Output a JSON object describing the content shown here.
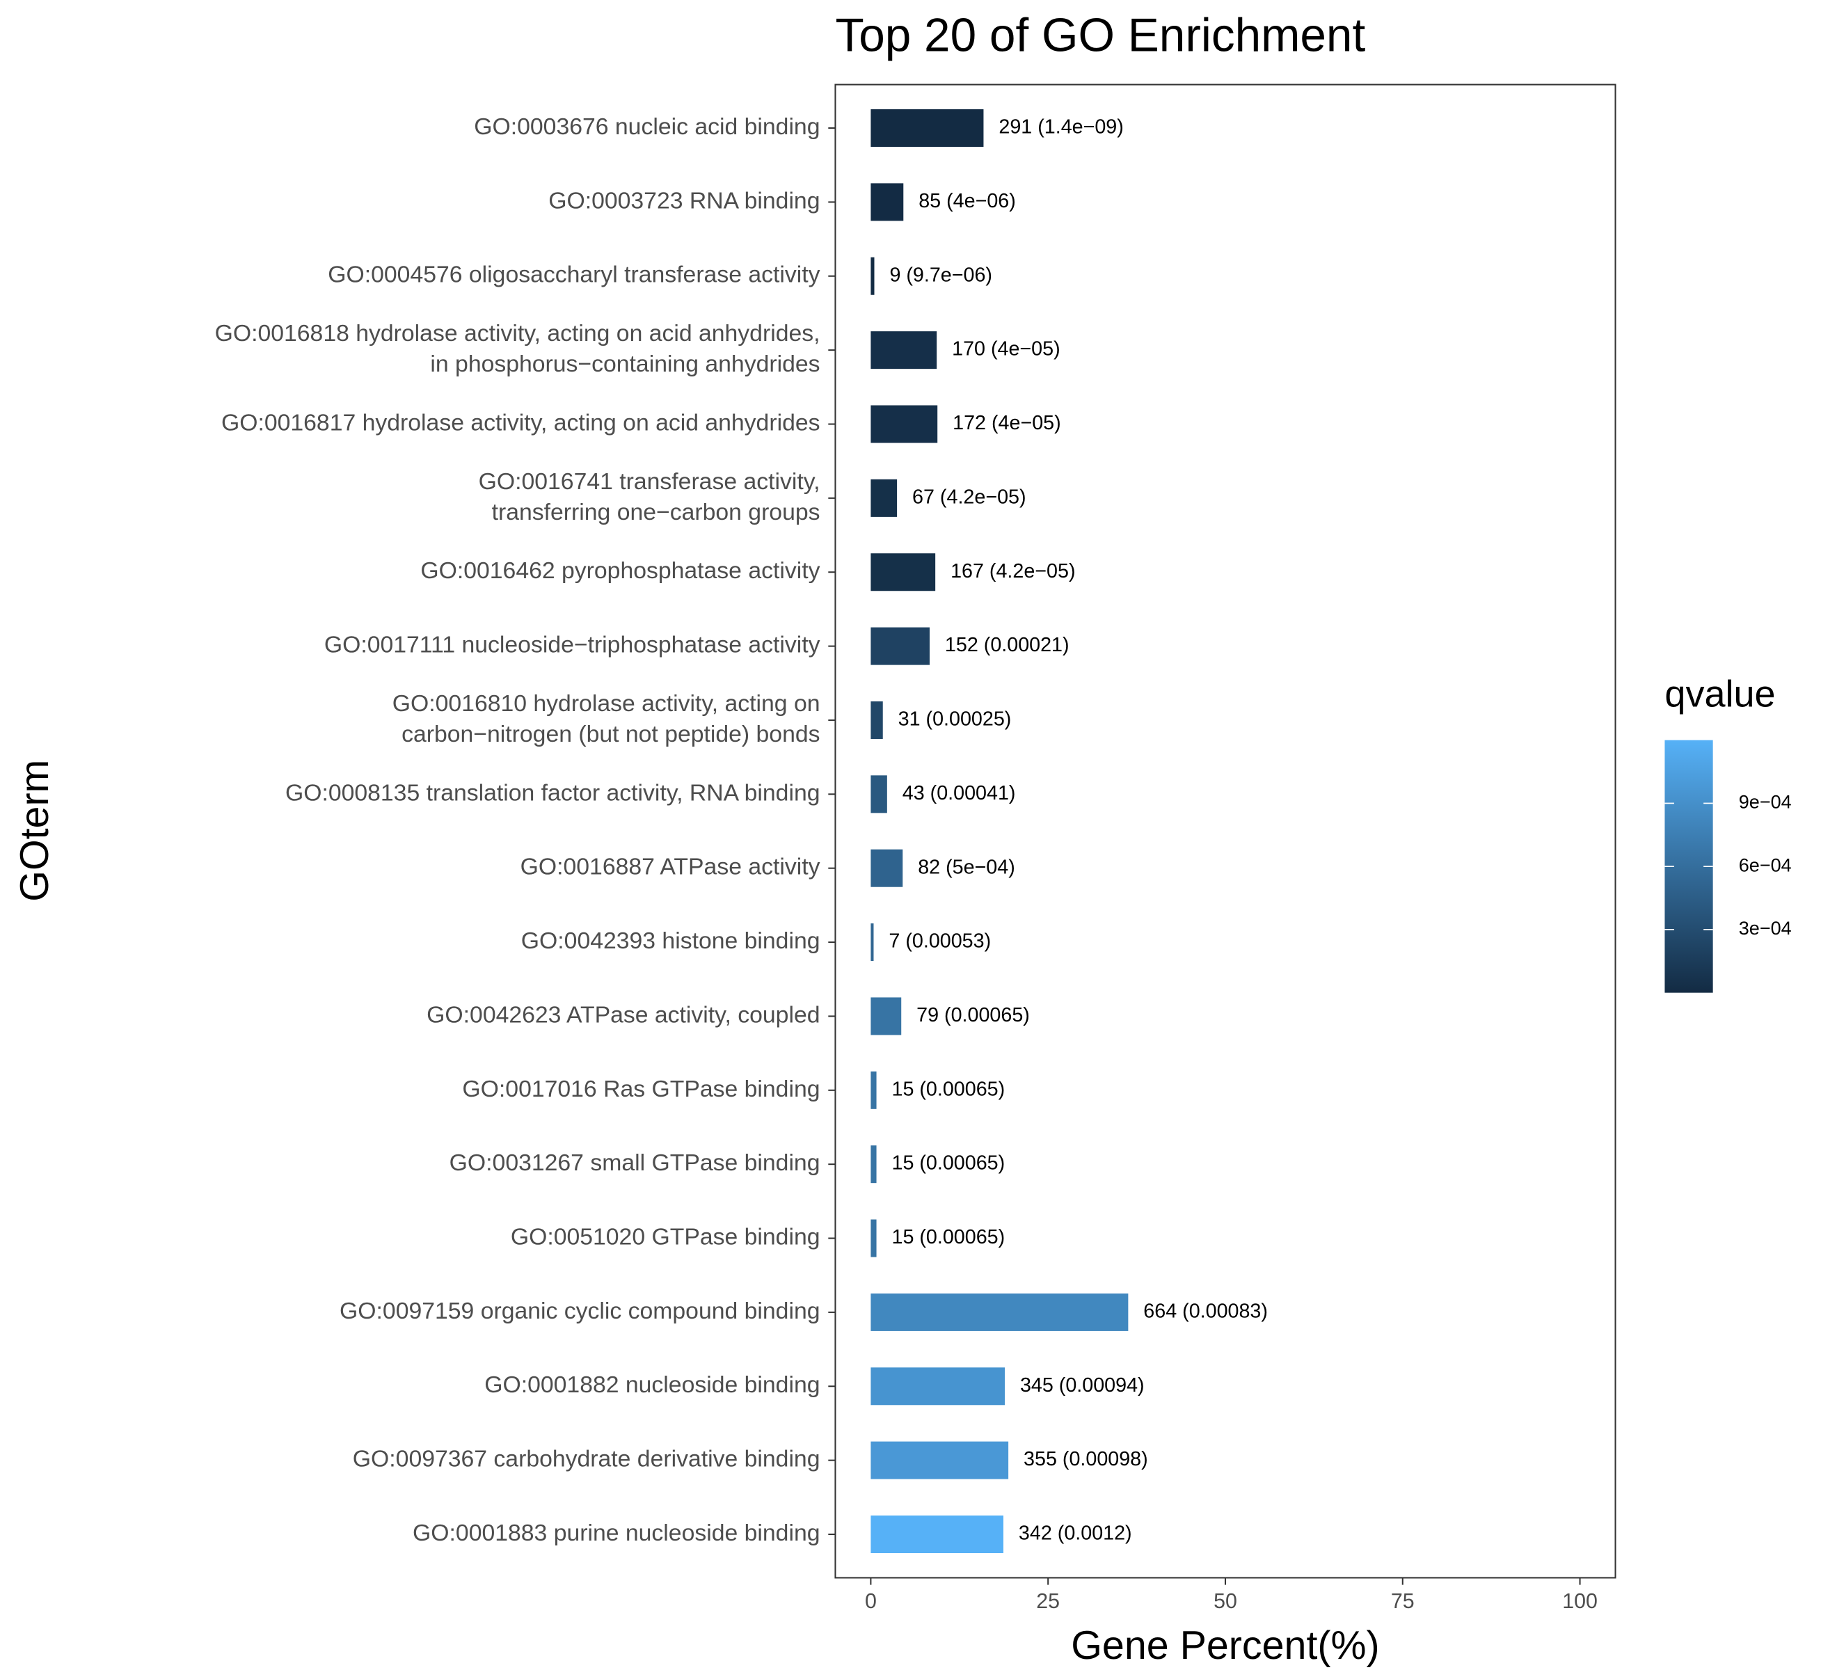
{
  "chart_data": {
    "type": "bar",
    "orientation": "horizontal",
    "title": "Top 20 of GO Enrichment",
    "xlabel": "Gene Percent(%)",
    "ylabel": "GOterm",
    "categories": [
      "GO:0003676 nucleic acid binding",
      "GO:0003723 RNA binding",
      "GO:0004576 oligosaccharyl transferase activity",
      "GO:0016818 hydrolase activity, acting on acid anhydrides,\nin phosphorus−containing anhydrides",
      "GO:0016817 hydrolase activity, acting on acid anhydrides",
      "GO:0016741 transferase activity,\ntransferring one−carbon groups",
      "GO:0016462 pyrophosphatase activity",
      "GO:0017111 nucleoside−triphosphatase activity",
      "GO:0016810 hydrolase activity, acting on\ncarbon−nitrogen (but not peptide) bonds",
      "GO:0008135 translation factor activity, RNA binding",
      "GO:0016887 ATPase activity",
      "GO:0042393 histone binding",
      "GO:0042623 ATPase activity, coupled",
      "GO:0017016 Ras GTPase binding",
      "GO:0031267 small GTPase binding",
      "GO:0051020 GTPase binding",
      "GO:0097159 organic cyclic compound binding",
      "GO:0001882 nucleoside binding",
      "GO:0097367 carbohydrate derivative binding",
      "GO:0001883 purine nucleoside binding"
    ],
    "values": [
      15.9,
      4.6,
      0.5,
      9.3,
      9.4,
      3.7,
      9.1,
      8.3,
      1.7,
      2.3,
      4.5,
      0.4,
      4.3,
      0.8,
      0.8,
      0.8,
      36.3,
      18.9,
      19.4,
      18.7
    ],
    "bar_labels": [
      "291 (1.4e−09)",
      "85 (4e−06)",
      "9 (9.7e−06)",
      "170 (4e−05)",
      "172 (4e−05)",
      "67 (4.2e−05)",
      "167 (4.2e−05)",
      "152 (0.00021)",
      "31 (0.00025)",
      "43 (0.00041)",
      "82 (5e−04)",
      "7 (0.00053)",
      "79 (0.00065)",
      "15 (0.00065)",
      "15 (0.00065)",
      "15 (0.00065)",
      "664 (0.00083)",
      "345 (0.00094)",
      "355 (0.00098)",
      "342 (0.0012)"
    ],
    "qvalues": [
      1.4e-09,
      4e-06,
      9.7e-06,
      4e-05,
      4e-05,
      4.2e-05,
      4.2e-05,
      0.00021,
      0.00025,
      0.00041,
      0.0005,
      0.00053,
      0.00065,
      0.00065,
      0.00065,
      0.00065,
      0.00083,
      0.00094,
      0.00098,
      0.0012
    ],
    "xlim": [
      -5,
      105
    ],
    "xticks": [
      0,
      25,
      50,
      75,
      100
    ],
    "color_scale": {
      "title": "qvalue",
      "low": "#132B43",
      "high": "#56B1F7",
      "lim": [
        1.4e-09,
        0.0012
      ],
      "ticks": [
        {
          "value": 0.0003,
          "label": "3e−04"
        },
        {
          "value": 0.0006,
          "label": "6e−04"
        },
        {
          "value": 0.0009,
          "label": "9e−04"
        }
      ]
    }
  }
}
